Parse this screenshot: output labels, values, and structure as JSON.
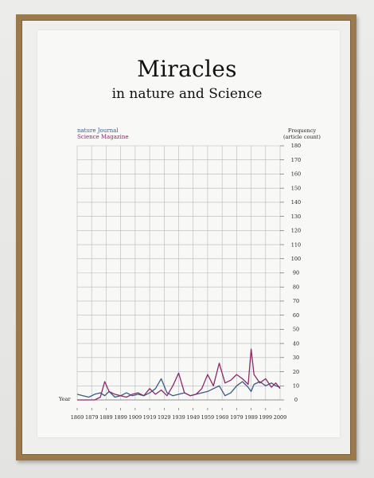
{
  "title": "Miracles",
  "subtitle": "in nature and Science",
  "chart_data": {
    "type": "line",
    "title": "Miracles",
    "subtitle": "in nature and Science",
    "xlabel": "Year",
    "ylabel": [
      "Frequency",
      "(article count)"
    ],
    "xlim": [
      1869,
      2009
    ],
    "ylim": [
      0,
      180
    ],
    "x_ticks": [
      1869,
      1879,
      1889,
      1899,
      1909,
      1919,
      1929,
      1939,
      1949,
      1959,
      1969,
      1979,
      1989,
      1999,
      2009
    ],
    "y_ticks": [
      0,
      10,
      20,
      30,
      40,
      50,
      60,
      70,
      80,
      90,
      100,
      110,
      120,
      130,
      140,
      150,
      160,
      170,
      180
    ],
    "grid": true,
    "legend_position": "top-left",
    "x": [
      1869,
      1873,
      1877,
      1881,
      1885,
      1888,
      1891,
      1895,
      1899,
      1903,
      1907,
      1911,
      1915,
      1919,
      1923,
      1927,
      1931,
      1935,
      1939,
      1943,
      1947,
      1951,
      1955,
      1959,
      1963,
      1967,
      1971,
      1975,
      1979,
      1983,
      1987,
      1989,
      1991,
      1995,
      1999,
      2003,
      2006,
      2009
    ],
    "series": [
      {
        "name": "nature Journal",
        "color": "#3b5b84",
        "values": [
          4,
          3,
          2,
          4,
          5,
          3,
          6,
          2,
          3,
          5,
          3,
          4,
          3,
          5,
          8,
          15,
          5,
          3,
          4,
          5,
          3,
          4,
          5,
          6,
          8,
          10,
          3,
          5,
          10,
          13,
          9,
          6,
          11,
          13,
          10,
          12,
          10,
          9
        ]
      },
      {
        "name": "Science Magazine",
        "color": "#8a2a6b",
        "values": [
          0,
          0,
          0,
          0,
          2,
          13,
          6,
          4,
          3,
          2,
          4,
          5,
          3,
          8,
          4,
          7,
          3,
          10,
          19,
          5,
          3,
          4,
          8,
          18,
          10,
          26,
          12,
          14,
          18,
          15,
          11,
          36,
          18,
          12,
          15,
          9,
          12,
          8
        ]
      }
    ]
  }
}
